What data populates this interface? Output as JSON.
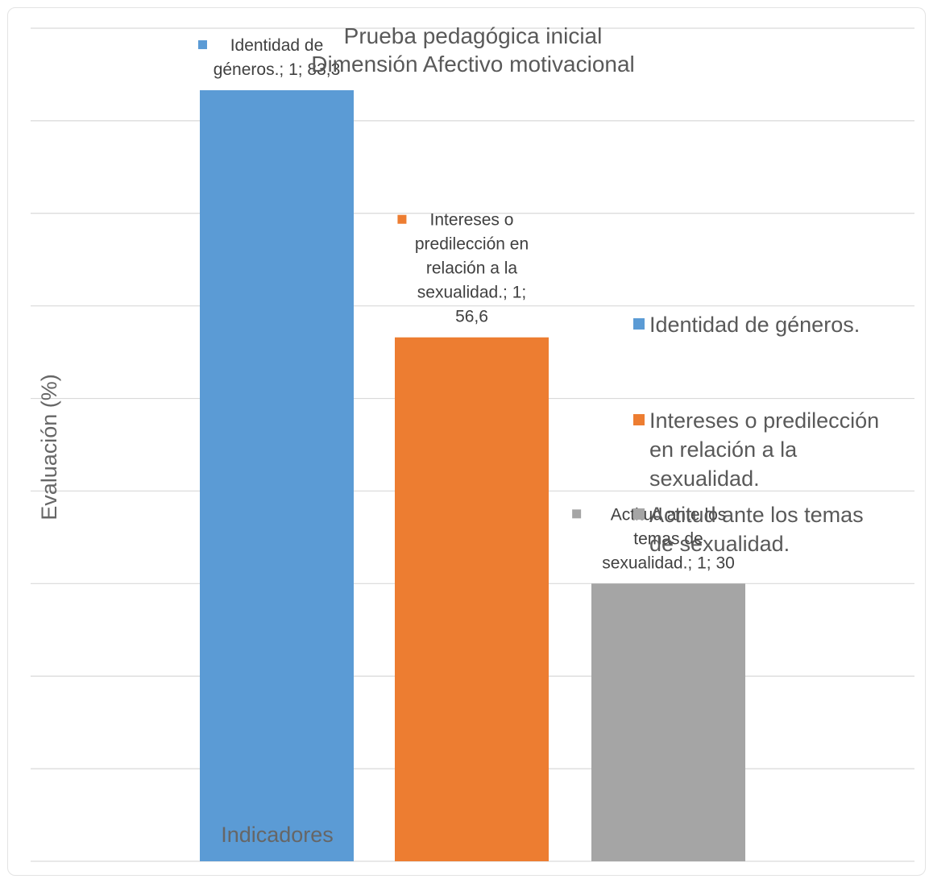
{
  "chart_data": {
    "type": "bar",
    "title": "Prueba pedagógica inicial",
    "subtitle": "Dimensión Afectivo motivacional",
    "xlabel": "Indicadores",
    "ylabel": "Evaluación (%)",
    "categories": [
      "1"
    ],
    "ylim": [
      0,
      90
    ],
    "grid": true,
    "legend_position": "right",
    "series": [
      {
        "name": "Identidad de géneros.",
        "values": [
          83.3
        ],
        "value_label": "83,3",
        "data_label": "Identidad de géneros.; 1; 83,3",
        "color": "#5B9BD5"
      },
      {
        "name": "Intereses o predilección en relación a la sexualidad.",
        "values": [
          56.6
        ],
        "value_label": "56,6",
        "data_label": "Intereses o predilección en relación a la sexualidad.; 1; 56,6",
        "color": "#ED7D31"
      },
      {
        "name": "Actitud ante los temas de sexualidad.",
        "values": [
          30
        ],
        "value_label": "30",
        "data_label": "Actitud ante los temas de sexualidad.; 1; 30",
        "color": "#A5A5A5"
      }
    ]
  }
}
